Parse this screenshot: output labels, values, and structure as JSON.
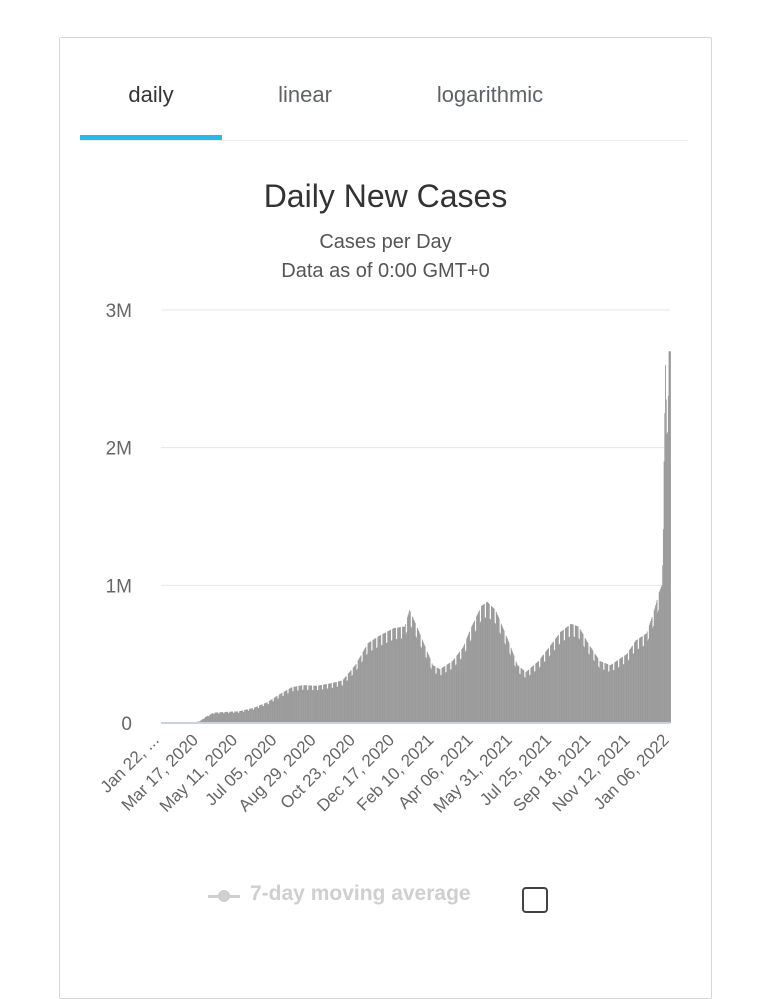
{
  "tabs": [
    {
      "label": "daily",
      "active": true
    },
    {
      "label": "linear",
      "active": false
    },
    {
      "label": "logarithmic",
      "active": false
    }
  ],
  "colors": {
    "accent": "#2bb6e8",
    "bar": "#9a9a9a",
    "axis_line": "#c5d3e6",
    "grid": "#e6e6e6",
    "legend_disabled": "#cfcfcf"
  },
  "chart_data": {
    "type": "bar",
    "title": "Daily New Cases",
    "subtitle": "Cases per Day",
    "subtitle2": "Data as of 0:00 GMT+0",
    "ylim": [
      0,
      3000000
    ],
    "yticks": [
      0,
      1000000,
      2000000,
      3000000
    ],
    "ytick_labels": [
      "0",
      "1M",
      "2M",
      "3M"
    ],
    "grid": true,
    "xtick_labels": [
      "Jan 22, ...",
      "Mar 17, 2020",
      "May 11, 2020",
      "Jul 05, 2020",
      "Aug 29, 2020",
      "Oct 23, 2020",
      "Dec 17, 2020",
      "Feb 10, 2021",
      "Apr 06, 2021",
      "May 31, 2021",
      "Jul 25, 2021",
      "Sep 18, 2021",
      "Nov 12, 2021",
      "Jan 06, 2022"
    ],
    "x_start": "2020-01-22",
    "x_end": "2022-01-13",
    "series": [
      {
        "name": "Daily New Cases",
        "points": [
          [
            "2020-01-22",
            600
          ],
          [
            "2020-02-15",
            2000
          ],
          [
            "2020-03-10",
            5000
          ],
          [
            "2020-03-17",
            15000
          ],
          [
            "2020-03-25",
            45000
          ],
          [
            "2020-04-05",
            75000
          ],
          [
            "2020-04-20",
            80000
          ],
          [
            "2020-05-11",
            85000
          ],
          [
            "2020-06-01",
            110000
          ],
          [
            "2020-06-20",
            150000
          ],
          [
            "2020-07-05",
            200000
          ],
          [
            "2020-07-25",
            260000
          ],
          [
            "2020-08-10",
            275000
          ],
          [
            "2020-08-29",
            270000
          ],
          [
            "2020-09-20",
            290000
          ],
          [
            "2020-10-05",
            310000
          ],
          [
            "2020-10-23",
            420000
          ],
          [
            "2020-11-10",
            580000
          ],
          [
            "2020-11-25",
            630000
          ],
          [
            "2020-12-17",
            690000
          ],
          [
            "2021-01-01",
            700000
          ],
          [
            "2021-01-08",
            820000
          ],
          [
            "2021-01-20",
            680000
          ],
          [
            "2021-02-10",
            420000
          ],
          [
            "2021-02-20",
            390000
          ],
          [
            "2021-03-10",
            450000
          ],
          [
            "2021-03-25",
            550000
          ],
          [
            "2021-04-06",
            700000
          ],
          [
            "2021-04-20",
            850000
          ],
          [
            "2021-04-28",
            880000
          ],
          [
            "2021-05-10",
            820000
          ],
          [
            "2021-05-31",
            560000
          ],
          [
            "2021-06-10",
            420000
          ],
          [
            "2021-06-22",
            370000
          ],
          [
            "2021-07-10",
            450000
          ],
          [
            "2021-07-25",
            550000
          ],
          [
            "2021-08-10",
            660000
          ],
          [
            "2021-08-25",
            720000
          ],
          [
            "2021-09-05",
            700000
          ],
          [
            "2021-09-18",
            580000
          ],
          [
            "2021-10-05",
            450000
          ],
          [
            "2021-10-20",
            420000
          ],
          [
            "2021-11-12",
            500000
          ],
          [
            "2021-11-25",
            600000
          ],
          [
            "2021-12-10",
            650000
          ],
          [
            "2021-12-20",
            800000
          ],
          [
            "2021-12-28",
            950000
          ],
          [
            "2022-01-01",
            1000000
          ],
          [
            "2022-01-04",
            1900000
          ],
          [
            "2022-01-06",
            2600000
          ],
          [
            "2022-01-08",
            2100000
          ],
          [
            "2022-01-10",
            2700000
          ],
          [
            "2022-01-13",
            2700000
          ]
        ]
      }
    ]
  },
  "legend": {
    "label": "7-day moving average",
    "enabled": false
  },
  "checkbox": {
    "checked": false
  }
}
